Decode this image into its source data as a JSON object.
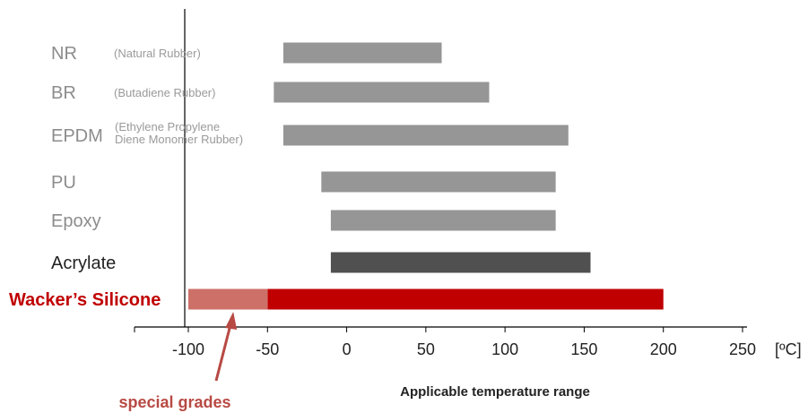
{
  "chart_data": {
    "type": "bar",
    "orientation": "horizontal",
    "categories": [
      {
        "label": "NR",
        "sublabel": [
          "(Natural Rubber)"
        ],
        "min": -40,
        "max": 60,
        "color": "#969696",
        "label_color": "#8c8c8c",
        "bold": false
      },
      {
        "label": "BR",
        "sublabel": [
          "(Butadiene Rubber)"
        ],
        "min": -46,
        "max": 90,
        "color": "#969696",
        "label_color": "#8c8c8c",
        "bold": false
      },
      {
        "label": "EPDM",
        "sublabel": [
          "(Ethylene Propylene",
          "Diene Monomer Rubber)"
        ],
        "min": -40,
        "max": 140,
        "color": "#969696",
        "label_color": "#8c8c8c",
        "bold": false
      },
      {
        "label": "PU",
        "sublabel": [],
        "min": -16,
        "max": 132,
        "color": "#969696",
        "label_color": "#8c8c8c",
        "bold": false
      },
      {
        "label": "Epoxy",
        "sublabel": [],
        "min": -10,
        "max": 132,
        "color": "#969696",
        "label_color": "#8c8c8c",
        "bold": false
      },
      {
        "label": "Acrylate",
        "sublabel": [],
        "min": -10,
        "max": 154,
        "color": "#505050",
        "label_color": "#222222",
        "bold": false
      },
      {
        "label": "Wacker’s Silicone",
        "sublabel": [],
        "min": -50,
        "max": 200,
        "color": "#c00000",
        "label_color": "#c00000",
        "bold": true,
        "special_min": -100,
        "special_max": -50,
        "special_color": "#cc7068"
      }
    ],
    "xlim": [
      -100,
      250
    ],
    "xticks": [
      -100,
      -50,
      0,
      50,
      100,
      150,
      200,
      250
    ],
    "xunit": "[ºC]",
    "xlabel": "Applicable temperature range",
    "annotation": {
      "text": "special grades",
      "color": "#b84a44",
      "points_to": -75
    }
  }
}
